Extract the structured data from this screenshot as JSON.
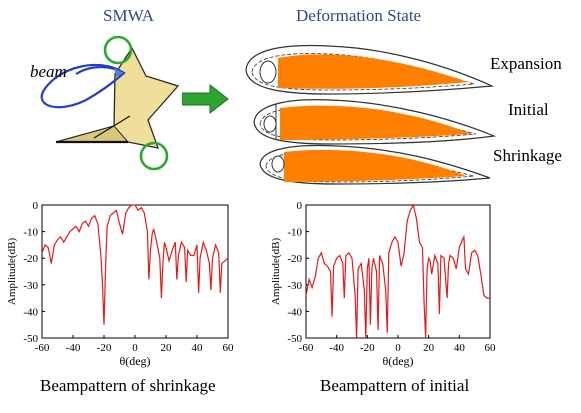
{
  "top": {
    "smwa_label": "SMWA",
    "beam_label": "beam",
    "deformation_label": "Deformation State",
    "states": [
      "Expansion",
      "Initial",
      "Shrinkage"
    ]
  },
  "colors": {
    "heading": "#2e4a86",
    "airfoil_fill": "#ff8000",
    "wing_fill": "#efdf9a",
    "circle": "#2ea82e",
    "arrow": "#2fa531",
    "beam_lobe": "#1f3fc8",
    "curve": "#e01b1b"
  },
  "chart_data": [
    {
      "type": "line",
      "caption": "Beampattern of shrinkage",
      "xlabel": "θ(deg)",
      "ylabel": "Amplitude(dB)",
      "xlim": [
        -60,
        60
      ],
      "ylim": [
        -50,
        0
      ],
      "xticks": [
        -60,
        -40,
        -20,
        0,
        20,
        40,
        60
      ],
      "yticks": [
        0,
        -10,
        -20,
        -30,
        -40,
        -50
      ],
      "series": [
        {
          "x": [
            -60,
            -58,
            -56,
            -55,
            -54,
            -52,
            -50,
            -48,
            -46,
            -44,
            -42,
            -40,
            -38,
            -36,
            -34,
            -32,
            -30,
            -28,
            -26,
            -24,
            -22,
            -21,
            -20,
            -19,
            -18,
            -17,
            -16,
            -14,
            -12,
            -10,
            -8,
            -6,
            -4,
            -2,
            0,
            2,
            4,
            6,
            8,
            9,
            10,
            11,
            12,
            14,
            16,
            17,
            18,
            19,
            20,
            22,
            24,
            26,
            27,
            28,
            30,
            32,
            33,
            34,
            36,
            38,
            40,
            41,
            42,
            44,
            46,
            48,
            49,
            50,
            52,
            54,
            55,
            56,
            58,
            60
          ],
          "values": [
            -18,
            -15,
            -16,
            -19,
            -22,
            -15,
            -13,
            -12,
            -14,
            -12,
            -10,
            -9,
            -8,
            -10,
            -7,
            -6,
            -8,
            -5,
            -4,
            -7,
            -19,
            -30,
            -45,
            -23,
            -8,
            -6,
            -4,
            -3,
            -2,
            -7,
            -11,
            -3,
            -1,
            0,
            0,
            -2,
            -1,
            -3,
            -10,
            -28,
            -17,
            -11,
            -9,
            -14,
            -20,
            -35,
            -22,
            -14,
            -16,
            -21,
            -17,
            -14,
            -28,
            -19,
            -14,
            -16,
            -29,
            -17,
            -19,
            -19,
            -15,
            -33,
            -20,
            -14,
            -17,
            -22,
            -32,
            -20,
            -15,
            -18,
            -33,
            -22,
            -21,
            -20
          ]
        }
      ]
    },
    {
      "type": "line",
      "caption": "Beampattern of initial",
      "xlabel": "θ(deg)",
      "ylabel": "Amplitude(dB)",
      "xlim": [
        -60,
        60
      ],
      "ylim": [
        -50,
        0
      ],
      "xticks": [
        -60,
        -40,
        -20,
        0,
        20,
        40,
        60
      ],
      "yticks": [
        0,
        -10,
        -20,
        -30,
        -40,
        -50
      ],
      "series": [
        {
          "x": [
            -60,
            -58,
            -56,
            -54,
            -52,
            -50,
            -48,
            -46,
            -44,
            -43,
            -42,
            -40,
            -38,
            -36,
            -35,
            -34,
            -32,
            -30,
            -28,
            -27,
            -26,
            -24,
            -22,
            -21,
            -20,
            -19,
            -18,
            -17,
            -16,
            -14,
            -13,
            -12,
            -10,
            -8,
            -7,
            -6,
            -4,
            -2,
            0,
            2,
            4,
            6,
            8,
            10,
            12,
            14,
            16,
            17,
            18,
            19,
            20,
            21,
            22,
            24,
            26,
            27,
            28,
            30,
            32,
            33,
            34,
            36,
            38,
            40,
            42,
            43,
            44,
            46,
            48,
            50,
            52,
            54,
            56,
            58,
            60
          ],
          "values": [
            -34,
            -28,
            -31,
            -27,
            -20,
            -18,
            -22,
            -23,
            -25,
            -42,
            -23,
            -20,
            -19,
            -22,
            -35,
            -19,
            -18,
            -20,
            -34,
            -50,
            -24,
            -22,
            -32,
            -50,
            -24,
            -20,
            -45,
            -24,
            -20,
            -25,
            -47,
            -19,
            -22,
            -32,
            -48,
            -18,
            -14,
            -12,
            -14,
            -23,
            -18,
            -6,
            -2,
            0,
            -5,
            -14,
            -16,
            -37,
            -50,
            -24,
            -20,
            -21,
            -26,
            -19,
            -22,
            -41,
            -19,
            -20,
            -35,
            -22,
            -19,
            -20,
            -24,
            -16,
            -13,
            -12,
            -24,
            -26,
            -18,
            -17,
            -19,
            -26,
            -34,
            -35,
            -35
          ]
        }
      ]
    }
  ]
}
